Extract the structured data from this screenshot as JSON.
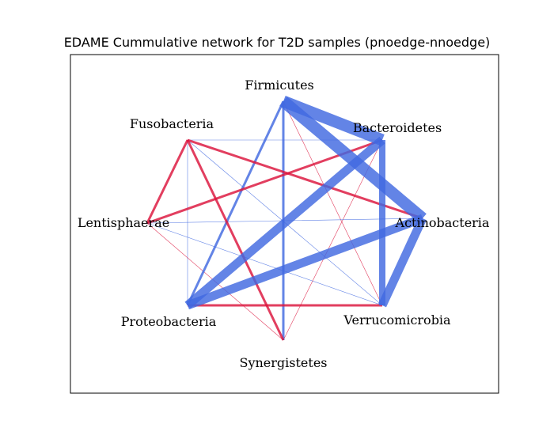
{
  "title": "EDAME Cummulative network for T2D samples (pnoedge-nnoedge)",
  "colors": {
    "positive": "#4169e1",
    "negative": "#dc143c",
    "frame": "#000000"
  },
  "nodes": [
    {
      "id": "firmicutes",
      "label": "Firmicutes"
    },
    {
      "id": "bacteroidetes",
      "label": "Bacteroidetes"
    },
    {
      "id": "actinobacteria",
      "label": "Actinobacteria"
    },
    {
      "id": "verrucomicrobia",
      "label": "Verrucomicrobia"
    },
    {
      "id": "synergistetes",
      "label": "Synergistetes"
    },
    {
      "id": "proteobacteria",
      "label": "Proteobacteria"
    },
    {
      "id": "lentisphaerae",
      "label": "Lentisphaerae"
    },
    {
      "id": "fusobacteria",
      "label": "Fusobacteria"
    }
  ],
  "edges": [
    {
      "source": "firmicutes",
      "target": "bacteroidetes",
      "sign": "positive",
      "weight": 15
    },
    {
      "source": "firmicutes",
      "target": "actinobacteria",
      "sign": "positive",
      "weight": 15
    },
    {
      "source": "firmicutes",
      "target": "proteobacteria",
      "sign": "positive",
      "weight": 3
    },
    {
      "source": "firmicutes",
      "target": "synergistetes",
      "sign": "positive",
      "weight": 3
    },
    {
      "source": "firmicutes",
      "target": "verrucomicrobia",
      "sign": "negative",
      "weight": 0.6
    },
    {
      "source": "bacteroidetes",
      "target": "verrucomicrobia",
      "sign": "positive",
      "weight": 8
    },
    {
      "source": "bacteroidetes",
      "target": "proteobacteria",
      "sign": "positive",
      "weight": 11
    },
    {
      "source": "bacteroidetes",
      "target": "lentisphaerae",
      "sign": "negative",
      "weight": 3
    },
    {
      "source": "bacteroidetes",
      "target": "synergistetes",
      "sign": "negative",
      "weight": 0.6
    },
    {
      "source": "actinobacteria",
      "target": "verrucomicrobia",
      "sign": "positive",
      "weight": 11
    },
    {
      "source": "actinobacteria",
      "target": "proteobacteria",
      "sign": "positive",
      "weight": 11
    },
    {
      "source": "actinobacteria",
      "target": "lentisphaerae",
      "sign": "positive",
      "weight": 0.6
    },
    {
      "source": "actinobacteria",
      "target": "fusobacteria",
      "sign": "negative",
      "weight": 3
    },
    {
      "source": "proteobacteria",
      "target": "verrucomicrobia",
      "sign": "negative",
      "weight": 3
    },
    {
      "source": "proteobacteria",
      "target": "fusobacteria",
      "sign": "positive",
      "weight": 0.6
    },
    {
      "source": "lentisphaerae",
      "target": "fusobacteria",
      "sign": "negative",
      "weight": 3
    },
    {
      "source": "synergistetes",
      "target": "fusobacteria",
      "sign": "negative",
      "weight": 3
    },
    {
      "source": "lentisphaerae",
      "target": "synergistetes",
      "sign": "negative",
      "weight": 0.6
    },
    {
      "source": "lentisphaerae",
      "target": "verrucomicrobia",
      "sign": "positive",
      "weight": 0.6
    },
    {
      "source": "fusobacteria",
      "target": "bacteroidetes",
      "sign": "positive",
      "weight": 0.6
    },
    {
      "source": "fusobacteria",
      "target": "verrucomicrobia",
      "sign": "positive",
      "weight": 0.6
    }
  ]
}
